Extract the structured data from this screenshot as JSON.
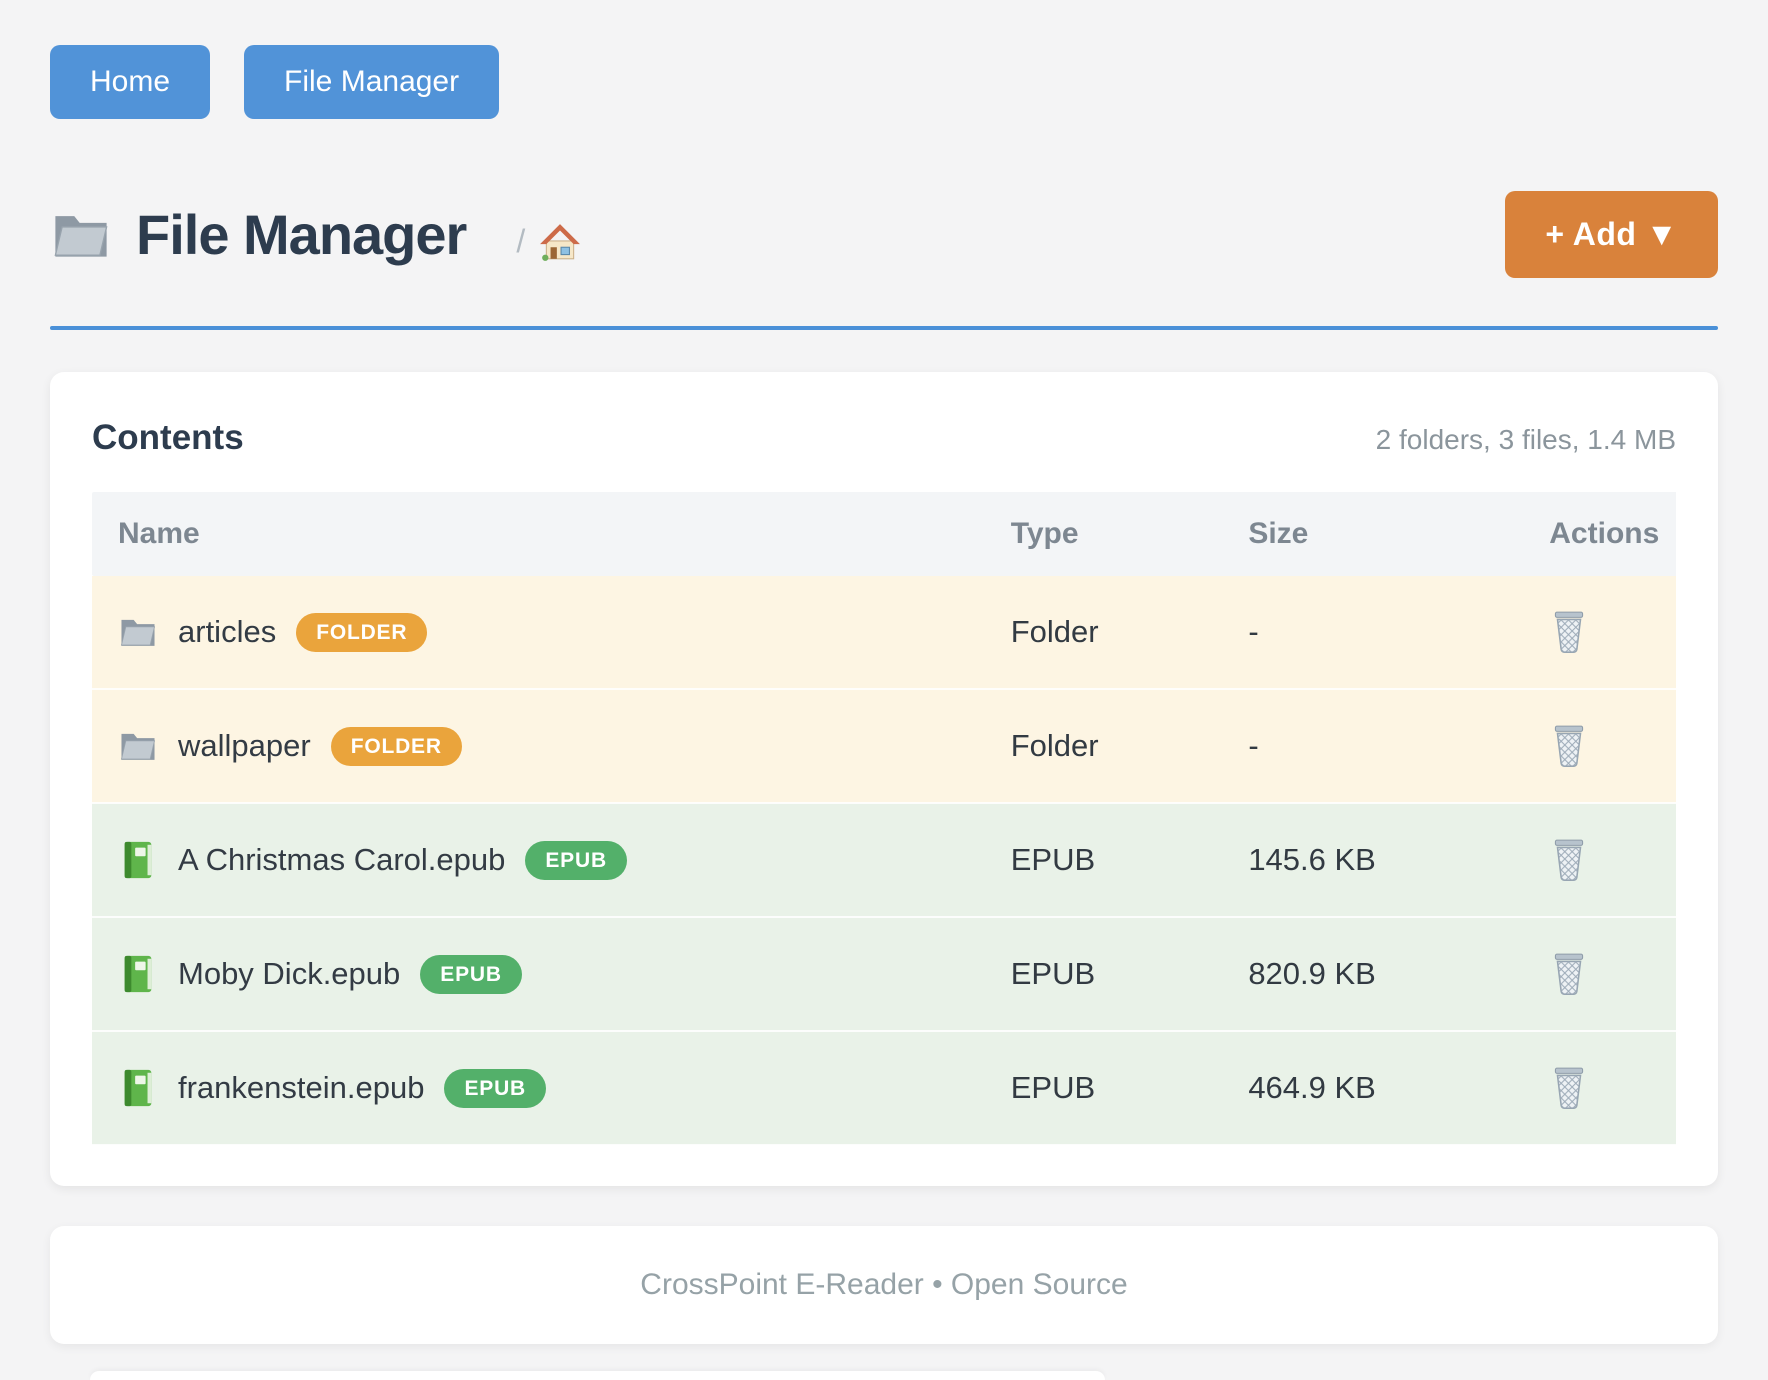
{
  "nav": {
    "home": "Home",
    "file_manager": "File Manager"
  },
  "header": {
    "title": "File Manager",
    "breadcrumb_separator": "/",
    "add_button": "+ Add ▼"
  },
  "contents": {
    "title": "Contents",
    "summary": "2 folders, 3 files, 1.4 MB",
    "columns": [
      "Name",
      "Type",
      "Size",
      "Actions"
    ],
    "rows": [
      {
        "name": "articles",
        "badge": "FOLDER",
        "type": "Folder",
        "size": "-",
        "kind": "folder",
        "icon": "folder-icon"
      },
      {
        "name": "wallpaper",
        "badge": "FOLDER",
        "type": "Folder",
        "size": "-",
        "kind": "folder",
        "icon": "folder-icon"
      },
      {
        "name": "A Christmas Carol.epub",
        "badge": "EPUB",
        "type": "EPUB",
        "size": "145.6 KB",
        "kind": "epub",
        "icon": "book-icon"
      },
      {
        "name": "Moby Dick.epub",
        "badge": "EPUB",
        "type": "EPUB",
        "size": "820.9 KB",
        "kind": "epub",
        "icon": "book-icon"
      },
      {
        "name": "frankenstein.epub",
        "badge": "EPUB",
        "type": "EPUB",
        "size": "464.9 KB",
        "kind": "epub",
        "icon": "book-icon"
      }
    ]
  },
  "footer": {
    "text": "CrossPoint E-Reader • Open Source"
  },
  "colors": {
    "accent_blue": "#5193d8",
    "accent_orange": "#d9823b",
    "badge_folder": "#eaa43c",
    "badge_epub": "#53b06a",
    "row_folder_bg": "#fdf5e3",
    "row_epub_bg": "#e9f2e8"
  }
}
